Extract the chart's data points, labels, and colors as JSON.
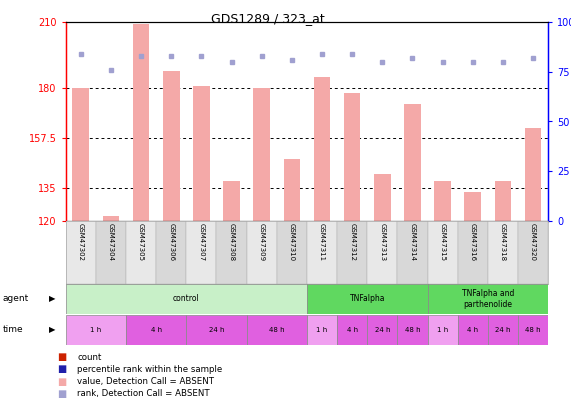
{
  "title": "GDS1289 / 323_at",
  "samples": [
    "GSM47302",
    "GSM47304",
    "GSM47305",
    "GSM47306",
    "GSM47307",
    "GSM47308",
    "GSM47309",
    "GSM47310",
    "GSM47311",
    "GSM47312",
    "GSM47313",
    "GSM47314",
    "GSM47315",
    "GSM47316",
    "GSM47318",
    "GSM47320"
  ],
  "bar_values": [
    180,
    122,
    209,
    188,
    181,
    138,
    180,
    148,
    185,
    178,
    141,
    173,
    138,
    133,
    138,
    162
  ],
  "bar_color": "#f4a9a8",
  "dot_values": [
    84,
    76,
    83,
    83,
    83,
    80,
    83,
    81,
    84,
    84,
    80,
    82,
    80,
    80,
    80,
    82
  ],
  "dot_color": "#a0a0d0",
  "ylim_left": [
    120,
    210
  ],
  "ylim_right": [
    0,
    100
  ],
  "yticks_left": [
    120,
    135,
    157.5,
    180,
    210
  ],
  "yticks_right": [
    0,
    25,
    50,
    75,
    100
  ],
  "hlines": [
    180,
    157.5,
    135
  ],
  "agent_configs": [
    {
      "label": "control",
      "start": 0,
      "end": 8,
      "color": "#c8f0c8"
    },
    {
      "label": "TNFalpha",
      "start": 8,
      "end": 12,
      "color": "#60d860"
    },
    {
      "label": "TNFalpha and\nparthenolide",
      "start": 12,
      "end": 16,
      "color": "#60d860"
    }
  ],
  "time_configs": [
    {
      "label": "1 h",
      "start": 0,
      "end": 2,
      "color": "#f0a0f0"
    },
    {
      "label": "4 h",
      "start": 2,
      "end": 4,
      "color": "#e060e0"
    },
    {
      "label": "24 h",
      "start": 4,
      "end": 6,
      "color": "#e060e0"
    },
    {
      "label": "48 h",
      "start": 6,
      "end": 8,
      "color": "#e060e0"
    },
    {
      "label": "1 h",
      "start": 8,
      "end": 9,
      "color": "#f0a0f0"
    },
    {
      "label": "4 h",
      "start": 9,
      "end": 10,
      "color": "#e060e0"
    },
    {
      "label": "24 h",
      "start": 10,
      "end": 11,
      "color": "#e060e0"
    },
    {
      "label": "48 h",
      "start": 11,
      "end": 12,
      "color": "#e060e0"
    },
    {
      "label": "1 h",
      "start": 12,
      "end": 13,
      "color": "#f0a0f0"
    },
    {
      "label": "4 h",
      "start": 13,
      "end": 14,
      "color": "#e060e0"
    },
    {
      "label": "24 h",
      "start": 14,
      "end": 15,
      "color": "#e060e0"
    },
    {
      "label": "48 h",
      "start": 15,
      "end": 16,
      "color": "#e060e0"
    }
  ],
  "legend_items": [
    {
      "label": "count",
      "color": "#cc2200"
    },
    {
      "label": "percentile rank within the sample",
      "color": "#2020aa"
    },
    {
      "label": "value, Detection Call = ABSENT",
      "color": "#f4a9a8"
    },
    {
      "label": "rank, Detection Call = ABSENT",
      "color": "#a0a0d0"
    }
  ],
  "background_color": "#ffffff",
  "fig_width": 5.71,
  "fig_height": 4.05,
  "fig_dpi": 100
}
